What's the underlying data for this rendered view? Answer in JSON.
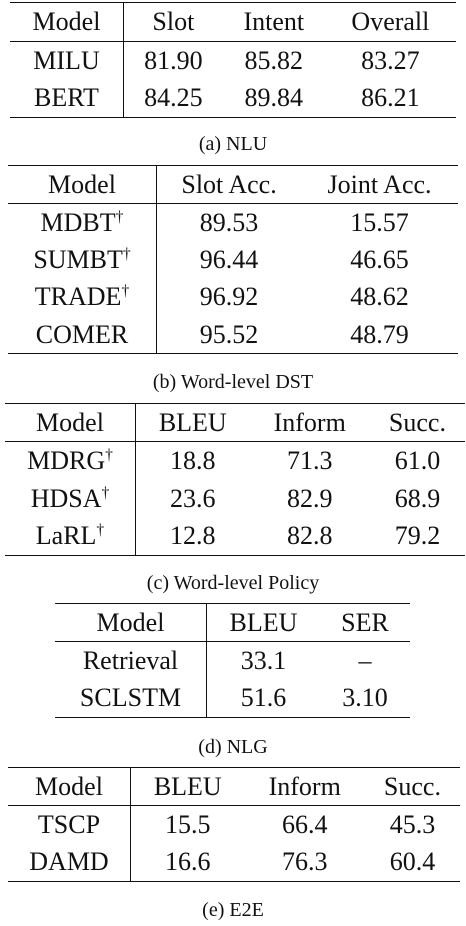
{
  "nlu": {
    "caption": "(a) NLU",
    "headers": [
      "Model",
      "Slot",
      "Intent",
      "Overall"
    ],
    "rows": [
      {
        "model": "MILU",
        "dagger": "",
        "cells": [
          "81.90",
          "85.82",
          "83.27"
        ]
      },
      {
        "model": "BERT",
        "dagger": "",
        "cells": [
          "84.25",
          "89.84",
          "86.21"
        ]
      }
    ]
  },
  "dst": {
    "caption": "(b) Word-level DST",
    "headers": [
      "Model",
      "Slot Acc.",
      "Joint Acc."
    ],
    "rows": [
      {
        "model": "MDBT",
        "dagger": "†",
        "cells": [
          "89.53",
          "15.57"
        ]
      },
      {
        "model": "SUMBT",
        "dagger": "†",
        "cells": [
          "96.44",
          "46.65"
        ]
      },
      {
        "model": "TRADE",
        "dagger": "†",
        "cells": [
          "96.92",
          "48.62"
        ]
      },
      {
        "model": "COMER",
        "dagger": "",
        "cells": [
          "95.52",
          "48.79"
        ]
      }
    ]
  },
  "policy": {
    "caption": "(c) Word-level Policy",
    "headers": [
      "Model",
      "BLEU",
      "Inform",
      "Succ."
    ],
    "rows": [
      {
        "model": "MDRG",
        "dagger": "†",
        "cells": [
          "18.8",
          "71.3",
          "61.0"
        ]
      },
      {
        "model": "HDSA",
        "dagger": "†",
        "cells": [
          "23.6",
          "82.9",
          "68.9"
        ]
      },
      {
        "model": "LaRL",
        "dagger": "†",
        "cells": [
          "12.8",
          "82.8",
          "79.2"
        ]
      }
    ]
  },
  "nlg": {
    "caption": "(d) NLG",
    "headers": [
      "Model",
      "BLEU",
      "SER"
    ],
    "rows": [
      {
        "model": "Retrieval",
        "dagger": "",
        "cells": [
          "33.1",
          "–"
        ]
      },
      {
        "model": "SCLSTM",
        "dagger": "",
        "cells": [
          "51.6",
          "3.10"
        ]
      }
    ]
  },
  "e2e": {
    "caption": "(e) E2E",
    "headers": [
      "Model",
      "BLEU",
      "Inform",
      "Succ."
    ],
    "rows": [
      {
        "model": "TSCP",
        "dagger": "",
        "cells": [
          "15.5",
          "66.4",
          "45.3"
        ]
      },
      {
        "model": "DAMD",
        "dagger": "",
        "cells": [
          "16.6",
          "76.3",
          "60.4"
        ]
      }
    ]
  }
}
